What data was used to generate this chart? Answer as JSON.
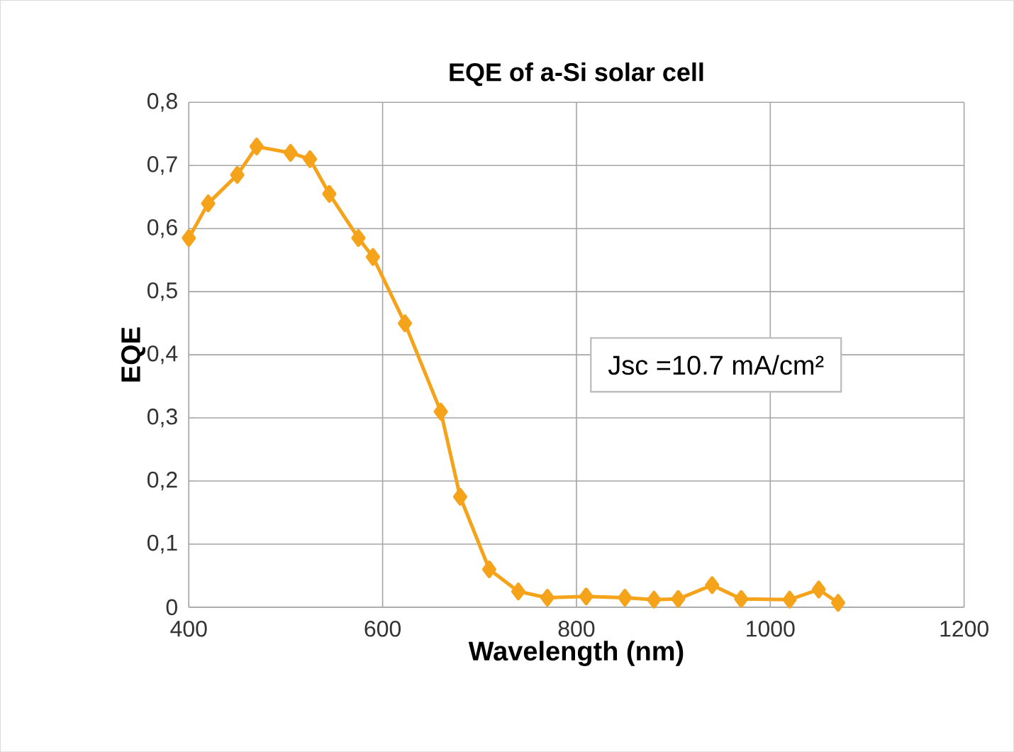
{
  "chart_data": {
    "type": "line",
    "title": "EQE of a-Si solar cell",
    "xlabel": "Wavelength (nm)",
    "ylabel": "EQE",
    "x": [
      400,
      420,
      450,
      470,
      505,
      525,
      545,
      575,
      590,
      623,
      660,
      680,
      710,
      740,
      770,
      810,
      850,
      880,
      905,
      940,
      970,
      1020,
      1050,
      1070
    ],
    "values": [
      0.585,
      0.64,
      0.685,
      0.73,
      0.72,
      0.71,
      0.655,
      0.585,
      0.555,
      0.45,
      0.31,
      0.175,
      0.06,
      0.025,
      0.015,
      0.017,
      0.015,
      0.012,
      0.013,
      0.035,
      0.013,
      0.012,
      0.028,
      0.007
    ],
    "color": "#f5a31a",
    "marker": "diamond",
    "line_style": "solid",
    "grid": true,
    "xlim": [
      400,
      1200
    ],
    "xticks": [
      400,
      600,
      800,
      1000,
      1200
    ],
    "ylim": [
      0,
      0.8
    ],
    "yticks": [
      {
        "value": 0,
        "label": "0"
      },
      {
        "value": 0.1,
        "label": "0,1"
      },
      {
        "value": 0.2,
        "label": "0,2"
      },
      {
        "value": 0.3,
        "label": "0,3"
      },
      {
        "value": 0.4,
        "label": "0,4"
      },
      {
        "value": 0.5,
        "label": "0,5"
      },
      {
        "value": 0.6,
        "label": "0,6"
      },
      {
        "value": 0.7,
        "label": "0,7"
      },
      {
        "value": 0.8,
        "label": "0,8"
      }
    ],
    "annotations": [
      "Jsc =10.7 mA/cm²"
    ]
  }
}
